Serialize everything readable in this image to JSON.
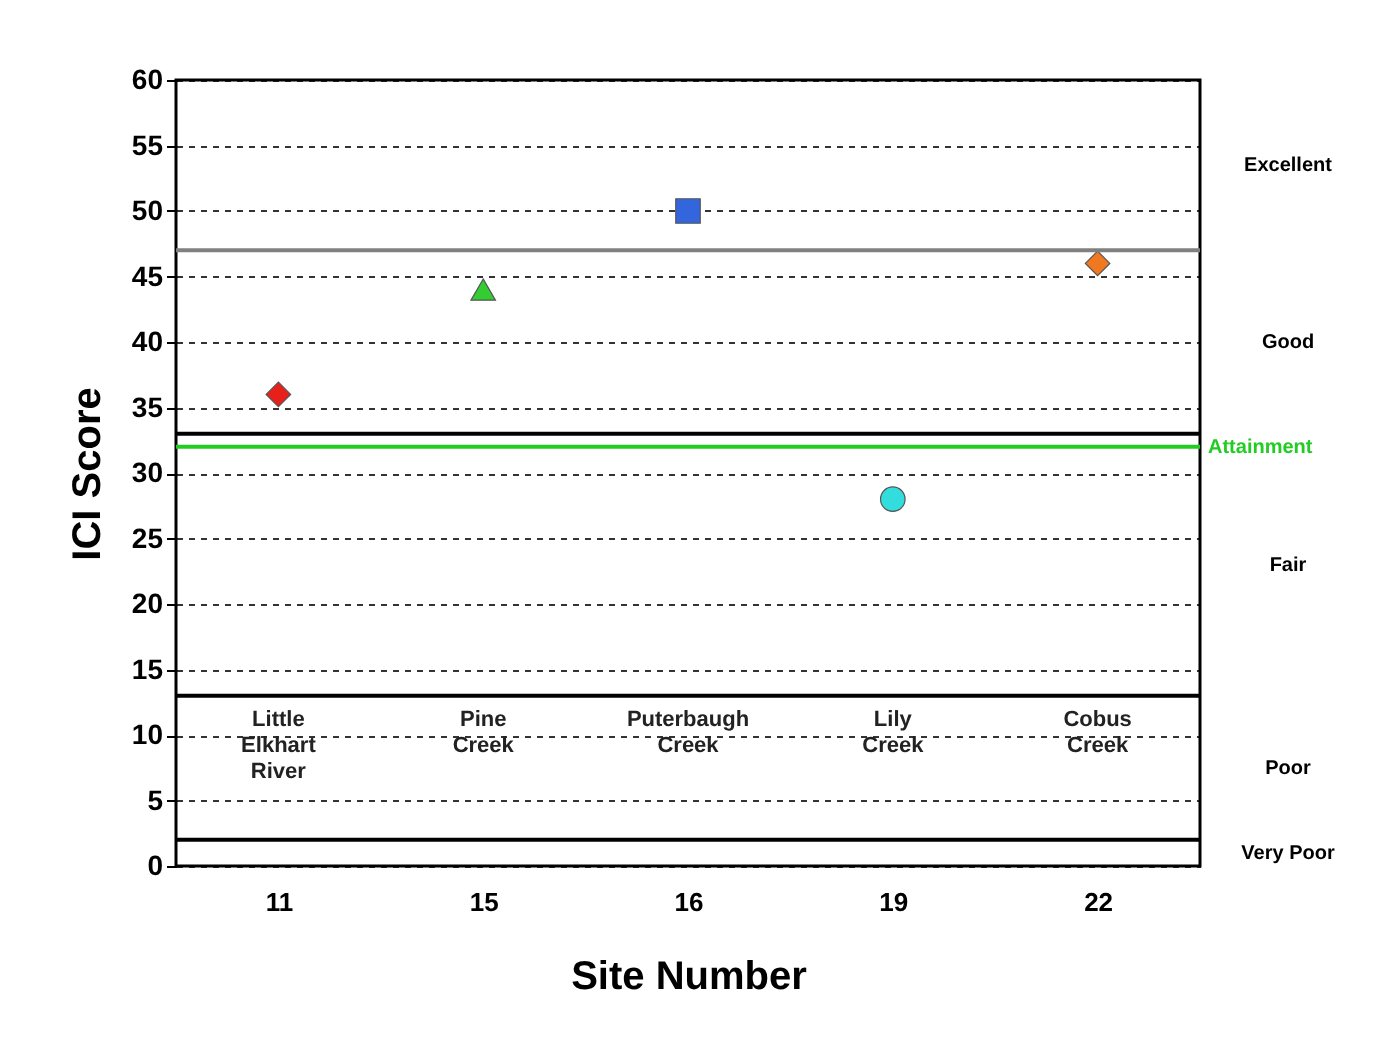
{
  "chart_data": {
    "type": "scatter",
    "xlabel": "Site Number",
    "ylabel": "ICI Score",
    "categories": [
      "11",
      "15",
      "16",
      "19",
      "22"
    ],
    "series": [
      {
        "color": "#e8201c",
        "marker": "diamond",
        "values": [
          36,
          null,
          null,
          null,
          null
        ]
      },
      {
        "color": "#33cc33",
        "marker": "triangle",
        "values": [
          null,
          44,
          null,
          null,
          null
        ]
      },
      {
        "color": "#3366dd",
        "marker": "square",
        "values": [
          null,
          null,
          50,
          null,
          null
        ]
      },
      {
        "color": "#33dddd",
        "marker": "circle",
        "values": [
          null,
          null,
          null,
          28,
          null
        ]
      },
      {
        "color": "#f07820",
        "marker": "diamond",
        "values": [
          null,
          null,
          null,
          null,
          46
        ]
      }
    ],
    "ylim": [
      0,
      60
    ],
    "yticks": [
      0,
      5,
      10,
      15,
      20,
      25,
      30,
      35,
      40,
      45,
      50,
      55,
      60
    ],
    "grid": "y",
    "ref_lines": [
      {
        "axis": "y",
        "value": 47,
        "label": null,
        "color": "#808080"
      },
      {
        "axis": "y",
        "value": 33,
        "label": null,
        "color": "#000000"
      },
      {
        "axis": "y",
        "value": 32,
        "label": "Attainment",
        "color": "#22cc22"
      },
      {
        "axis": "y",
        "value": 13,
        "label": null,
        "color": "#000000"
      },
      {
        "axis": "y",
        "value": 2,
        "label": null,
        "color": "#000000"
      }
    ],
    "annotations": [
      "Little Elkhart River",
      "Pine Creek",
      "Puterbaugh Creek",
      "Lily Creek",
      "Cobus Creek",
      "Excellent",
      "Good",
      "Fair",
      "Poor",
      "Very Poor"
    ]
  }
}
